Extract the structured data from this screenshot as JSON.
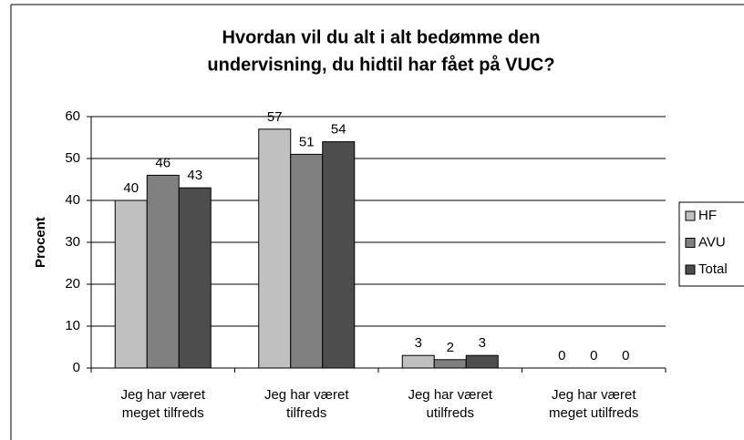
{
  "chart_data": {
    "type": "bar",
    "title": [
      "Hvordan vil du alt i alt bedømme den",
      "undervisning, du hidtil har fået på VUC?"
    ],
    "y_label": "Procent",
    "categories": [
      [
        "Jeg har været",
        "meget tilfreds"
      ],
      [
        "Jeg har været",
        "tilfreds"
      ],
      [
        "Jeg har været",
        "utilfreds"
      ],
      [
        "Jeg har været",
        "meget utilfreds"
      ]
    ],
    "series": [
      {
        "name": "HF",
        "color": "#c0c0c0",
        "values": [
          40,
          57,
          3,
          0
        ]
      },
      {
        "name": "AVU",
        "color": "#808080",
        "values": [
          46,
          51,
          2,
          0
        ]
      },
      {
        "name": "Total",
        "color": "#4d4d4d",
        "values": [
          43,
          54,
          3,
          0
        ]
      }
    ],
    "ylim": [
      0,
      60
    ],
    "yticks": [
      0,
      10,
      20,
      30,
      40,
      50,
      60
    ],
    "grid": true,
    "legend": "right"
  }
}
